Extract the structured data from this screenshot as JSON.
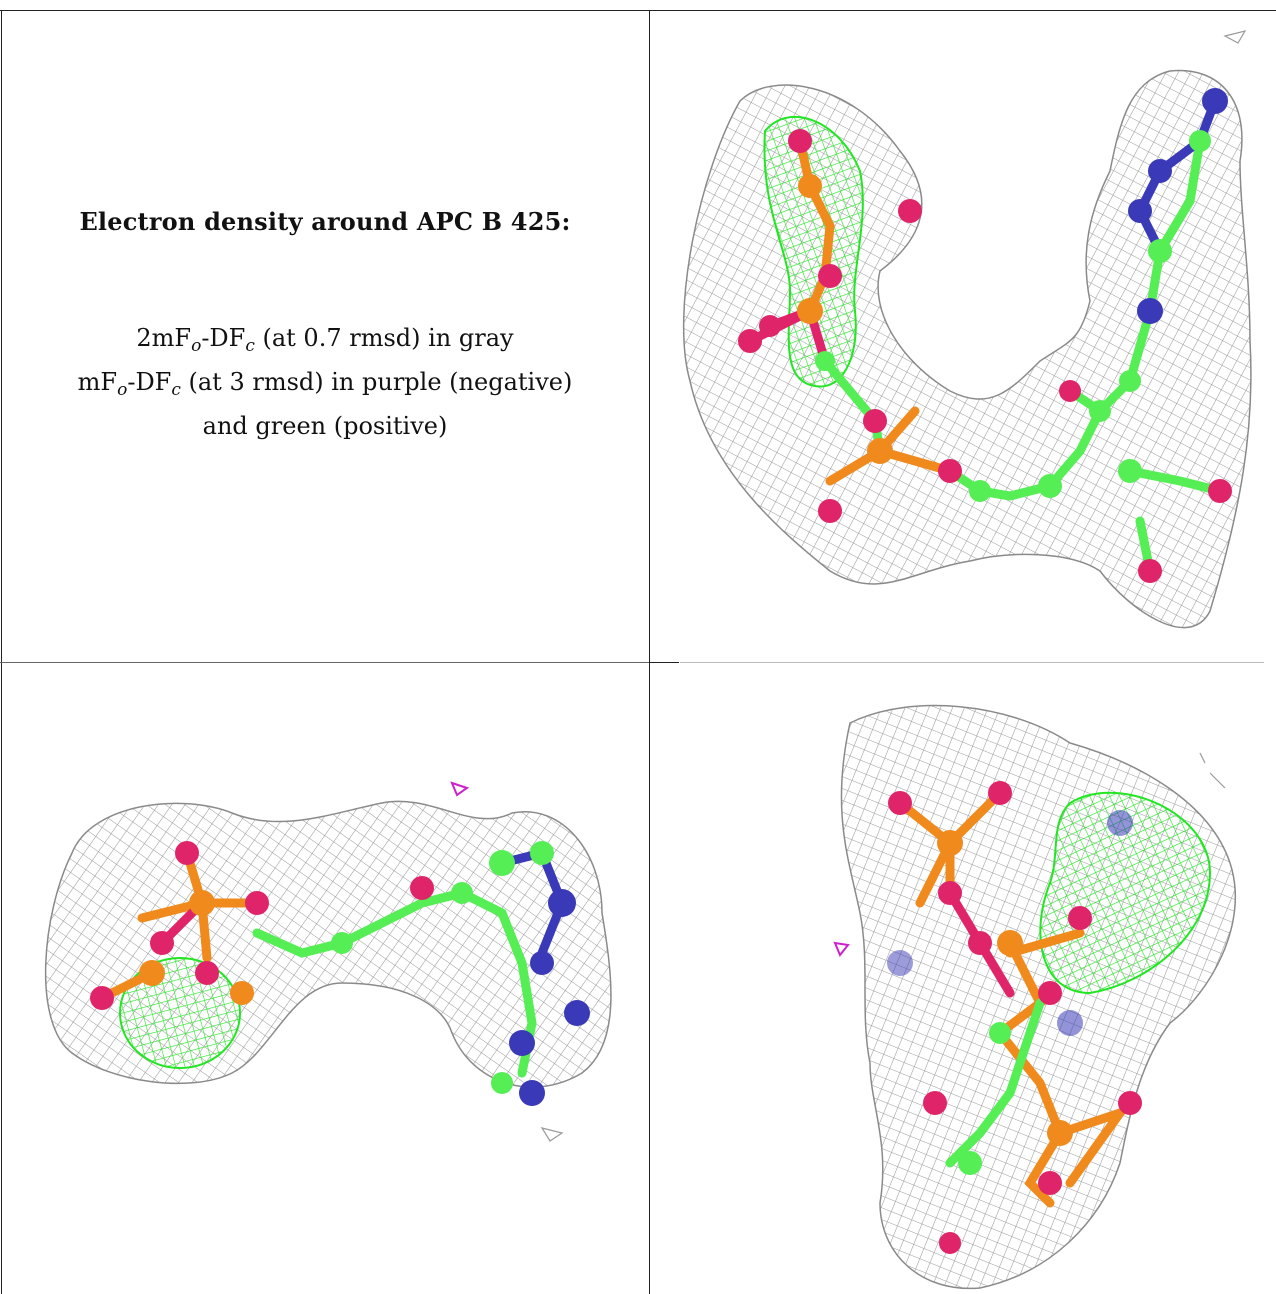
{
  "caption": {
    "title": "Electron density around APC B 425:",
    "line1": {
      "a": "2mF",
      "a_sub": "o",
      "b": "-DF",
      "b_sub": "c",
      "c": " (at 0.7 rmsd) in gray"
    },
    "line2": {
      "a": "mF",
      "a_sub": "o",
      "b": "-DF",
      "b_sub": "c",
      "c": " (at 3 rmsd) in purple (negative)"
    },
    "line3": "and green (positive)"
  },
  "colors": {
    "mesh_gray": "#9a9a9a",
    "mesh_green": "#22e622",
    "mesh_purple": "#cc22cc",
    "carbon": "#55ee55",
    "nitrogen": "#3a3ab8",
    "oxygen": "#e0246a",
    "phosphorus": "#f08a1c",
    "frame": "#222222"
  },
  "views": [
    {
      "id": "view-top-right",
      "description_icon": "molecule-render-icon"
    },
    {
      "id": "view-bottom-left",
      "description_icon": "molecule-render-icon"
    },
    {
      "id": "view-bottom-right",
      "description_icon": "molecule-render-icon"
    }
  ]
}
